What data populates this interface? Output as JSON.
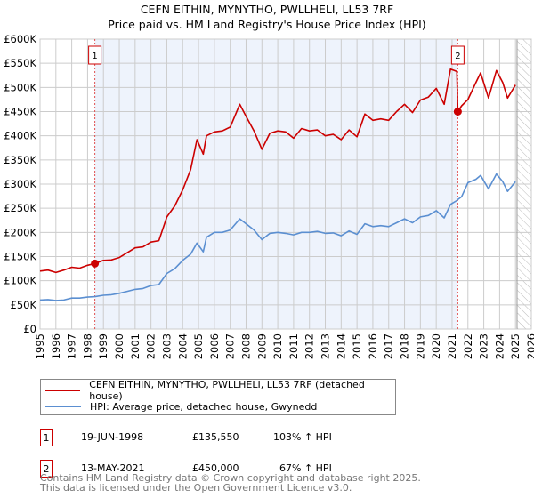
{
  "chart_data": {
    "type": "line",
    "title": "CEFN EITHIN, MYNYTHO, PWLLHELI, LL53 7RF",
    "subtitle": "Price paid vs. HM Land Registry's House Price Index (HPI)",
    "xlim": [
      1995,
      2026
    ],
    "ylim": [
      0,
      600000
    ],
    "x_ticks": [
      "1995",
      "1996",
      "1997",
      "1998",
      "1999",
      "2000",
      "2001",
      "2002",
      "2003",
      "2004",
      "2005",
      "2006",
      "2007",
      "2008",
      "2009",
      "2010",
      "2011",
      "2012",
      "2013",
      "2014",
      "2015",
      "2016",
      "2017",
      "2018",
      "2019",
      "2020",
      "2021",
      "2022",
      "2023",
      "2024",
      "2025",
      "2026"
    ],
    "y_ticks": [
      {
        "v": 0,
        "l": "£0"
      },
      {
        "v": 50000,
        "l": "£50K"
      },
      {
        "v": 100000,
        "l": "£100K"
      },
      {
        "v": 150000,
        "l": "£150K"
      },
      {
        "v": 200000,
        "l": "£200K"
      },
      {
        "v": 250000,
        "l": "£250K"
      },
      {
        "v": 300000,
        "l": "£300K"
      },
      {
        "v": 350000,
        "l": "£350K"
      },
      {
        "v": 400000,
        "l": "£400K"
      },
      {
        "v": 450000,
        "l": "£450K"
      },
      {
        "v": 500000,
        "l": "£500K"
      },
      {
        "v": 550000,
        "l": "£550K"
      },
      {
        "v": 600000,
        "l": "£600K"
      }
    ],
    "grid": true,
    "shaded_range": [
      1998.46,
      2021.36
    ],
    "forecast_hatch_from": 2025.1,
    "series": [
      {
        "name": "CEFN EITHIN, MYNYTHO, PWLLHELI, LL53 7RF (detached house)",
        "color": "#cc0000",
        "x": [
          1995,
          1995.5,
          1996,
          1996.5,
          1997,
          1997.5,
          1998,
          1998.46,
          1999,
          1999.5,
          2000,
          2000.5,
          2001,
          2001.5,
          2002,
          2002.5,
          2003,
          2003.5,
          2004,
          2004.5,
          2004.9,
          2005.3,
          2005.5,
          2006,
          2006.5,
          2007,
          2007.6,
          2008,
          2008.5,
          2009,
          2009.5,
          2010,
          2010.5,
          2011,
          2011.5,
          2012,
          2012.5,
          2013,
          2013.5,
          2014,
          2014.5,
          2015,
          2015.5,
          2016,
          2016.5,
          2017,
          2017.5,
          2018,
          2018.5,
          2019,
          2019.5,
          2020,
          2020.5,
          2020.9,
          2021.3,
          2021.36,
          2021.6,
          2022,
          2022.5,
          2022.8,
          2023.3,
          2023.8,
          2024.2,
          2024.5,
          2025
        ],
        "y": [
          120000,
          122000,
          117000,
          122000,
          128000,
          126000,
          132000,
          135550,
          142000,
          143000,
          148000,
          158000,
          168000,
          170000,
          180000,
          183000,
          232000,
          255000,
          288000,
          330000,
          392000,
          362000,
          400000,
          408000,
          410000,
          418000,
          465000,
          440000,
          410000,
          372000,
          405000,
          410000,
          408000,
          395000,
          415000,
          410000,
          412000,
          400000,
          403000,
          392000,
          412000,
          398000,
          445000,
          432000,
          435000,
          432000,
          450000,
          465000,
          448000,
          474000,
          480000,
          498000,
          465000,
          538000,
          533000,
          450000,
          462000,
          475000,
          510000,
          530000,
          478000,
          535000,
          510000,
          478000,
          505000
        ]
      },
      {
        "name": "HPI: Average price, detached house, Gwynedd",
        "color": "#5b8fd1",
        "x": [
          1995,
          1995.5,
          1996,
          1996.5,
          1997,
          1997.5,
          1998,
          1998.46,
          1999,
          1999.5,
          2000,
          2000.5,
          2001,
          2001.5,
          2002,
          2002.5,
          2003,
          2003.5,
          2004,
          2004.5,
          2004.9,
          2005.3,
          2005.5,
          2006,
          2006.5,
          2007,
          2007.6,
          2008,
          2008.5,
          2009,
          2009.5,
          2010,
          2010.5,
          2011,
          2011.5,
          2012,
          2012.5,
          2013,
          2013.5,
          2014,
          2014.5,
          2015,
          2015.5,
          2016,
          2016.5,
          2017,
          2017.5,
          2018,
          2018.5,
          2019,
          2019.5,
          2020,
          2020.5,
          2020.9,
          2021.3,
          2021.36,
          2021.6,
          2022,
          2022.5,
          2022.8,
          2023.3,
          2023.8,
          2024.2,
          2024.5,
          2025
        ],
        "y": [
          60000,
          61000,
          59000,
          60000,
          64000,
          64000,
          66000,
          67000,
          70000,
          71000,
          74000,
          78000,
          82000,
          84000,
          90000,
          92000,
          115000,
          125000,
          142000,
          155000,
          178000,
          160000,
          190000,
          200000,
          200000,
          205000,
          228000,
          218000,
          205000,
          185000,
          198000,
          200000,
          198000,
          195000,
          200000,
          200000,
          202000,
          198000,
          199000,
          193000,
          203000,
          196000,
          218000,
          212000,
          214000,
          212000,
          220000,
          228000,
          220000,
          232000,
          235000,
          245000,
          230000,
          258000,
          266000,
          268000,
          274000,
          303000,
          310000,
          318000,
          290000,
          321000,
          305000,
          285000,
          305000
        ]
      }
    ],
    "annotations": [
      {
        "label": "1",
        "x": 1998.46,
        "y": 135550
      },
      {
        "label": "2",
        "x": 2021.36,
        "y": 450000
      }
    ]
  },
  "legend": [
    "CEFN EITHIN, MYNYTHO, PWLLHELI, LL53 7RF (detached house)",
    "HPI: Average price, detached house, Gwynedd"
  ],
  "sales": [
    {
      "num": "1",
      "date": "19-JUN-1998",
      "price": "£135,550",
      "hpi": "103% ↑ HPI"
    },
    {
      "num": "2",
      "date": "13-MAY-2021",
      "price": "£450,000",
      "hpi": "67% ↑ HPI"
    }
  ],
  "footer": [
    "Contains HM Land Registry data © Crown copyright and database right 2025.",
    "This data is licensed under the Open Government Licence v3.0."
  ]
}
